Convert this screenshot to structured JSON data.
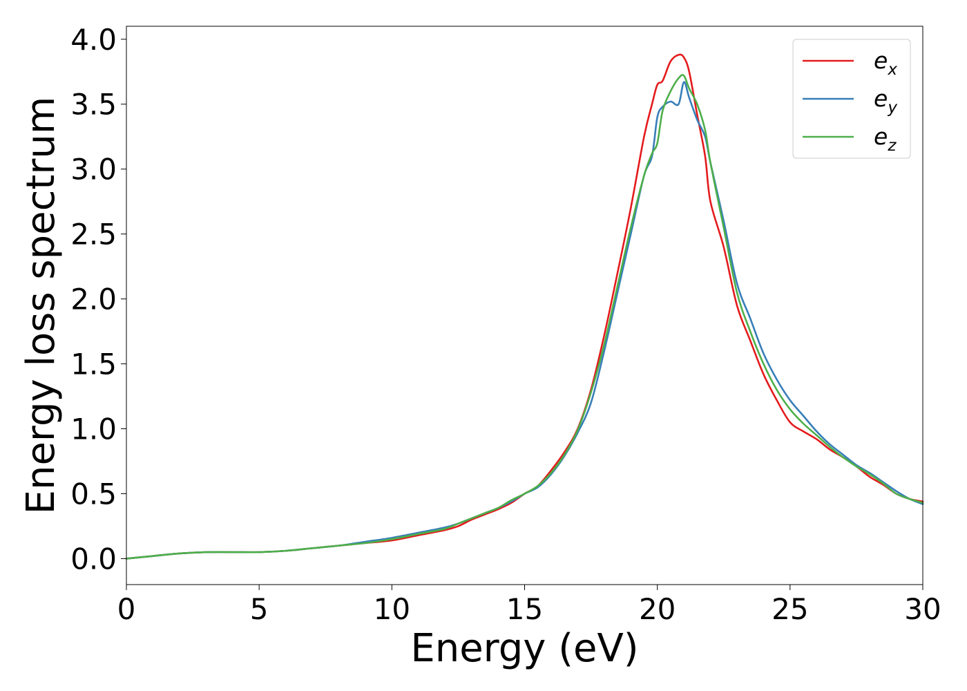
{
  "chart_data": {
    "type": "line",
    "title": "",
    "xlabel": "Energy (eV)",
    "ylabel": "Energy loss spectrum",
    "xlim": [
      0,
      30
    ],
    "ylim": [
      -0.2,
      4.1
    ],
    "xticks": [
      0,
      5,
      10,
      15,
      20,
      25,
      30
    ],
    "xtick_labels": [
      "0",
      "5",
      "10",
      "15",
      "20",
      "25",
      "30"
    ],
    "yticks": [
      0.0,
      0.5,
      1.0,
      1.5,
      2.0,
      2.5,
      3.0,
      3.5,
      4.0
    ],
    "ytick_labels": [
      "0.0",
      "0.5",
      "1.0",
      "1.5",
      "2.0",
      "2.5",
      "3.0",
      "3.5",
      "4.0"
    ],
    "grid": false,
    "legend_position": "top-right",
    "series": [
      {
        "name": "e",
        "subscript": "x",
        "color": "#e41a1c",
        "x": [
          0,
          1,
          2,
          3,
          4,
          5,
          6,
          7,
          8,
          9,
          10,
          11,
          12,
          12.5,
          13,
          13.5,
          14,
          14.5,
          15,
          15.5,
          16,
          16.5,
          17,
          17.5,
          18,
          18.5,
          19,
          19.5,
          19.8,
          20,
          20.2,
          20.5,
          20.8,
          21,
          21.2,
          21.5,
          21.8,
          22,
          22.5,
          23,
          23.5,
          24,
          24.5,
          25,
          25.5,
          26,
          26.5,
          27,
          27.5,
          28,
          28.5,
          29,
          29.5,
          30
        ],
        "y": [
          0.0,
          0.02,
          0.04,
          0.05,
          0.05,
          0.05,
          0.06,
          0.08,
          0.1,
          0.12,
          0.14,
          0.18,
          0.22,
          0.25,
          0.3,
          0.34,
          0.38,
          0.43,
          0.5,
          0.56,
          0.68,
          0.82,
          1.0,
          1.3,
          1.72,
          2.2,
          2.7,
          3.25,
          3.5,
          3.65,
          3.68,
          3.83,
          3.88,
          3.86,
          3.75,
          3.42,
          3.1,
          2.75,
          2.4,
          1.95,
          1.68,
          1.42,
          1.22,
          1.05,
          0.98,
          0.92,
          0.84,
          0.78,
          0.71,
          0.63,
          0.57,
          0.5,
          0.46,
          0.44
        ]
      },
      {
        "name": "e",
        "subscript": "y",
        "color": "#377eb8",
        "x": [
          0,
          1,
          2,
          3,
          4,
          5,
          6,
          7,
          8,
          9,
          10,
          11,
          12,
          12.5,
          13,
          13.5,
          14,
          14.5,
          15,
          15.5,
          16,
          16.5,
          17,
          17.5,
          18,
          18.5,
          19,
          19.5,
          19.8,
          20,
          20.2,
          20.5,
          20.8,
          21,
          21.2,
          21.5,
          21.8,
          22,
          22.5,
          23,
          23.5,
          24,
          24.5,
          25,
          25.5,
          26,
          26.5,
          27,
          27.5,
          28,
          28.5,
          29,
          29.5,
          30
        ],
        "y": [
          0.0,
          0.02,
          0.04,
          0.05,
          0.05,
          0.05,
          0.06,
          0.08,
          0.1,
          0.13,
          0.16,
          0.2,
          0.24,
          0.27,
          0.31,
          0.35,
          0.39,
          0.44,
          0.5,
          0.55,
          0.65,
          0.79,
          0.97,
          1.2,
          1.6,
          2.05,
          2.5,
          2.95,
          3.1,
          3.4,
          3.48,
          3.52,
          3.5,
          3.67,
          3.55,
          3.38,
          3.25,
          3.05,
          2.6,
          2.12,
          1.85,
          1.58,
          1.38,
          1.22,
          1.1,
          0.98,
          0.88,
          0.8,
          0.72,
          0.66,
          0.59,
          0.52,
          0.46,
          0.42
        ]
      },
      {
        "name": "e",
        "subscript": "z",
        "color": "#4daf4a",
        "x": [
          0,
          1,
          2,
          3,
          4,
          5,
          6,
          7,
          8,
          9,
          10,
          11,
          12,
          12.5,
          13,
          13.5,
          14,
          14.5,
          15,
          15.5,
          16,
          16.5,
          17,
          17.5,
          18,
          18.5,
          19,
          19.5,
          19.8,
          20,
          20.2,
          20.5,
          20.8,
          21,
          21.2,
          21.5,
          21.8,
          22,
          22.5,
          23,
          23.5,
          24,
          24.5,
          25,
          25.5,
          26,
          26.5,
          27,
          27.5,
          28,
          28.5,
          29,
          29.5,
          30
        ],
        "y": [
          0.0,
          0.02,
          0.04,
          0.05,
          0.05,
          0.05,
          0.06,
          0.08,
          0.1,
          0.12,
          0.15,
          0.19,
          0.23,
          0.27,
          0.31,
          0.35,
          0.39,
          0.45,
          0.5,
          0.56,
          0.66,
          0.8,
          0.99,
          1.28,
          1.65,
          2.1,
          2.55,
          2.95,
          3.12,
          3.2,
          3.45,
          3.6,
          3.7,
          3.72,
          3.62,
          3.5,
          3.3,
          3.05,
          2.55,
          2.05,
          1.75,
          1.5,
          1.3,
          1.15,
          1.04,
          0.95,
          0.86,
          0.78,
          0.71,
          0.65,
          0.58,
          0.5,
          0.46,
          0.43
        ]
      }
    ]
  }
}
